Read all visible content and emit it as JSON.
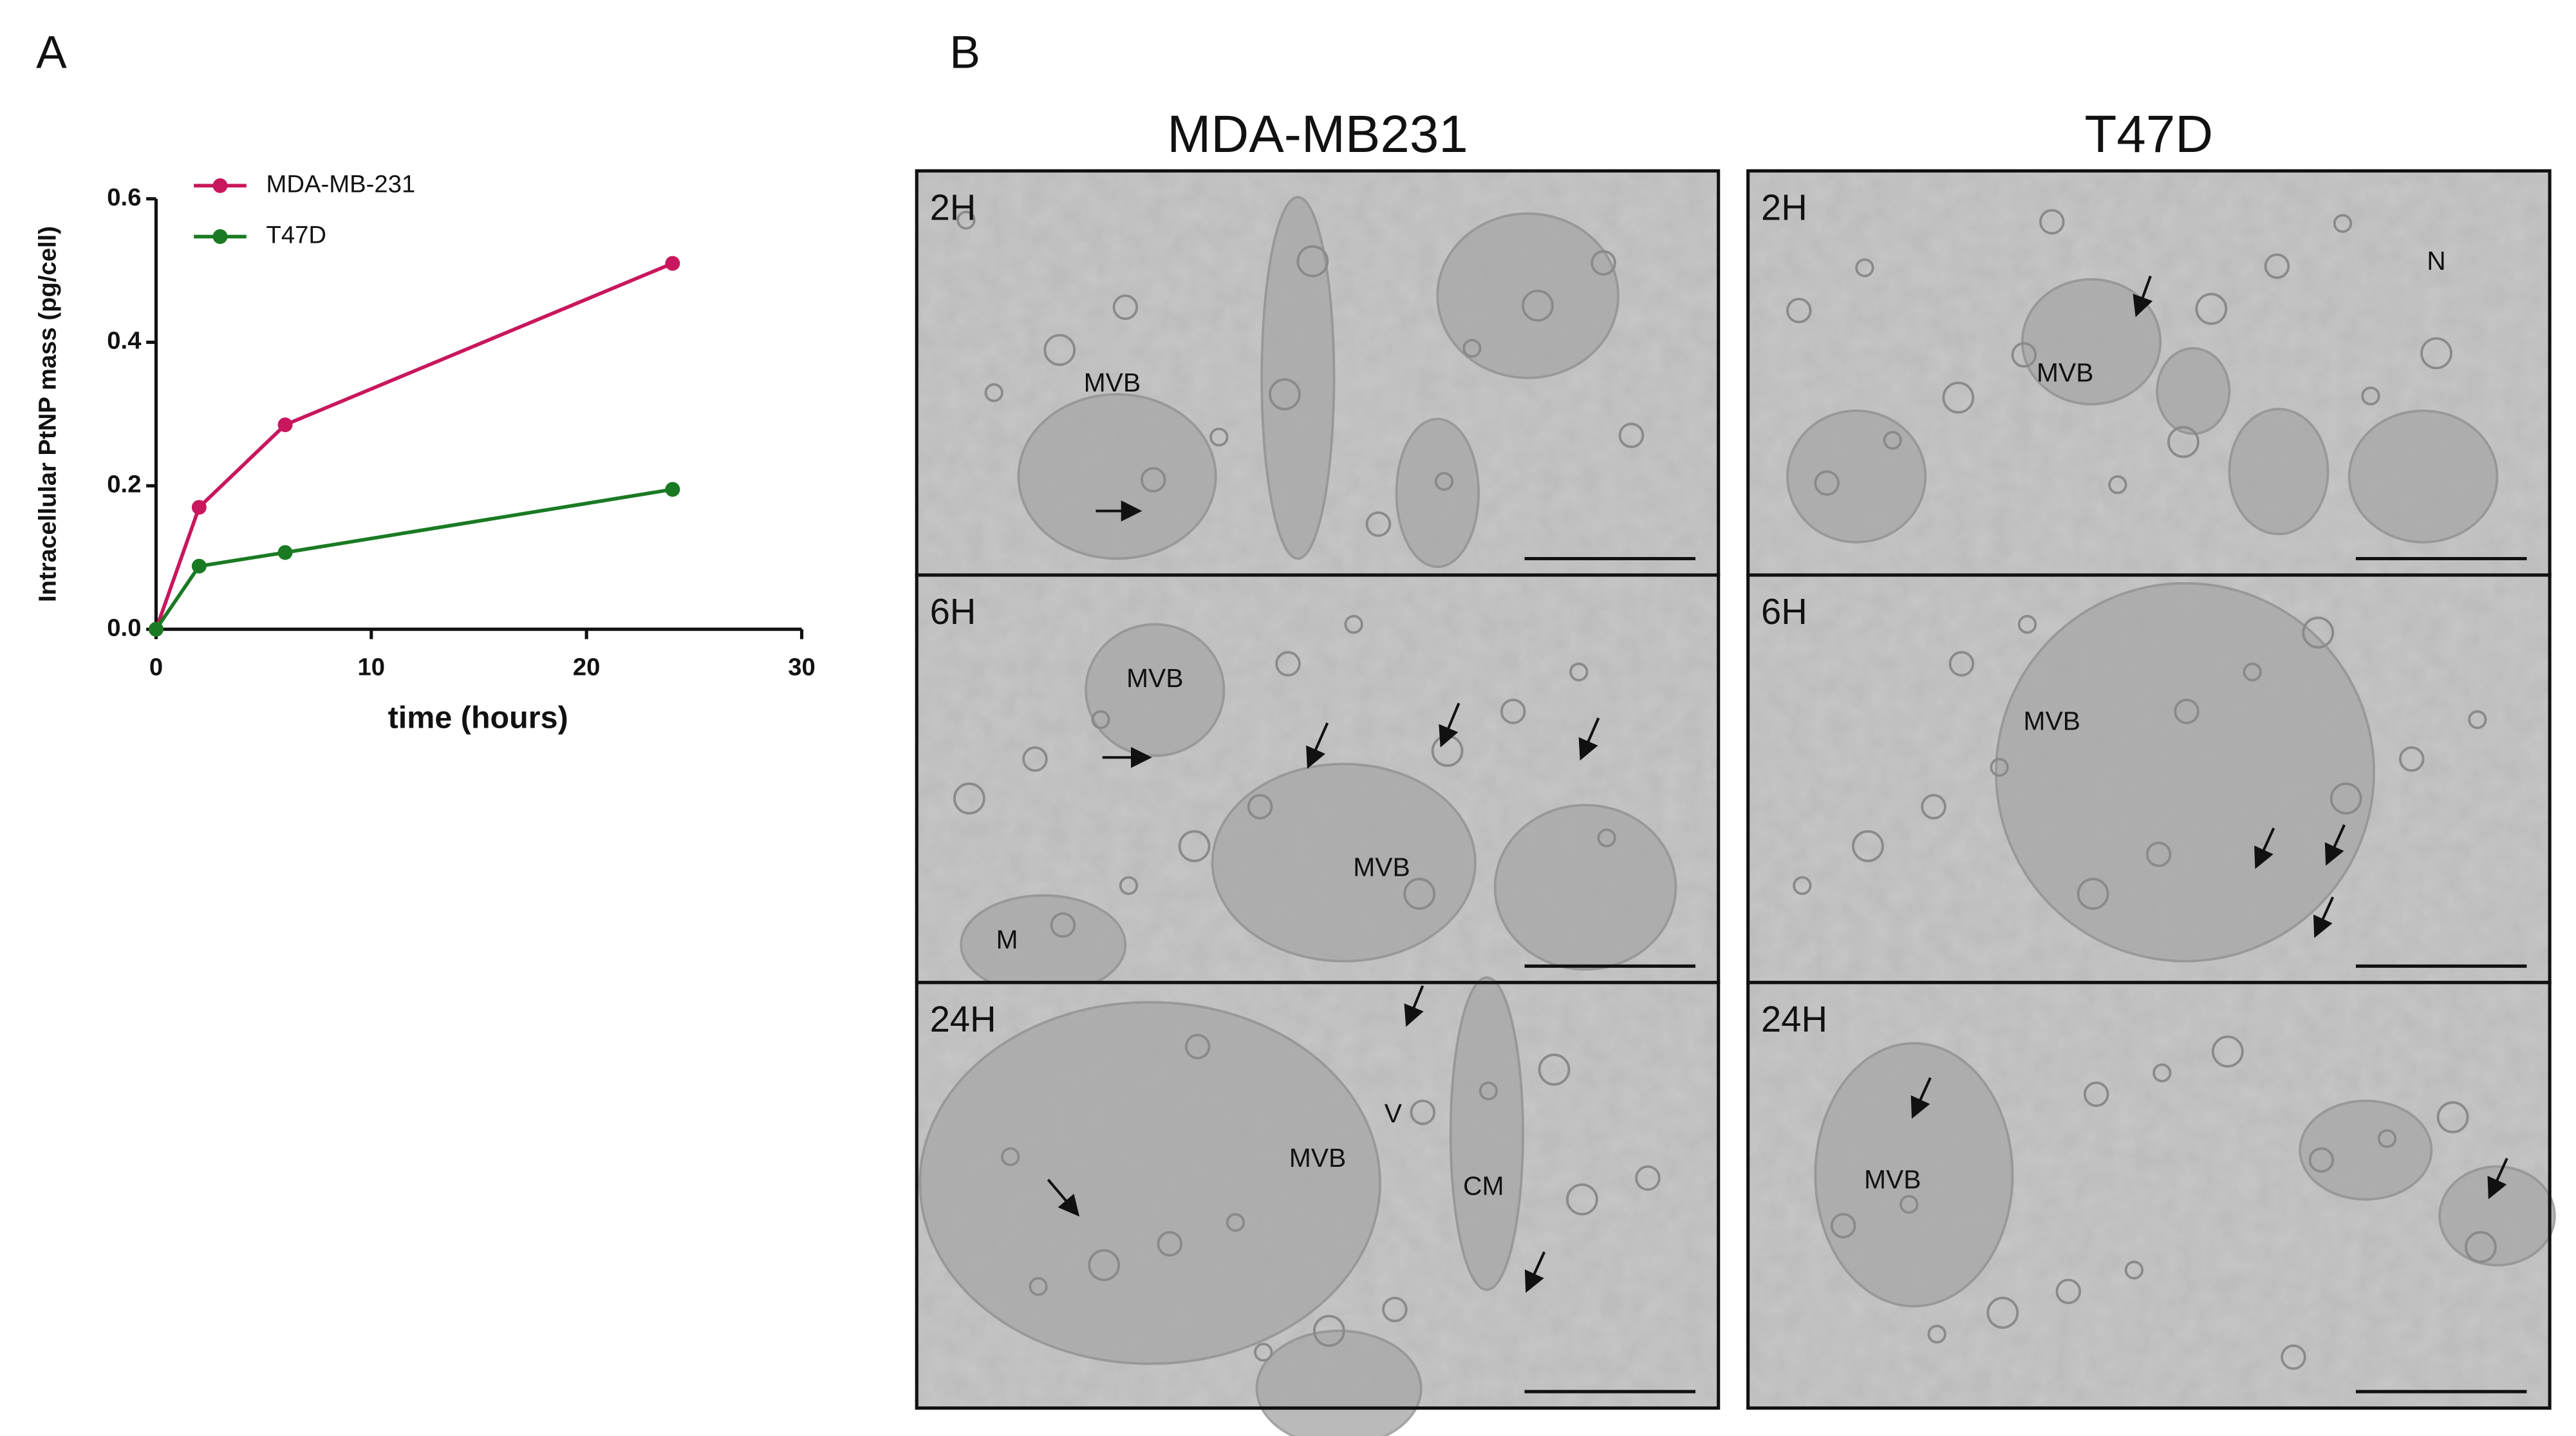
{
  "panel_labels": [
    "A",
    "B"
  ],
  "chart_data": {
    "type": "line",
    "x_label": "time (hours)",
    "y_label": "Intracellular PtNP mass  (pg/cell)",
    "x": [
      0,
      2,
      6,
      24
    ],
    "series": [
      {
        "name": "MDA-MB-231",
        "color": "#c8175d",
        "values": [
          0,
          0.17,
          0.285,
          0.51
        ]
      },
      {
        "name": "T47D",
        "color": "#1a7a23",
        "values": [
          0,
          0.088,
          0.107,
          0.195
        ]
      }
    ],
    "xlim": [
      0,
      30
    ],
    "xticks": [
      0,
      10,
      20,
      30
    ],
    "ylim": [
      0,
      0.6
    ],
    "yticks": [
      {
        "value": 0,
        "label": "0.0"
      },
      0.2,
      0.4,
      0.6
    ],
    "legend": "top-left"
  },
  "micrographs": {
    "columns": [
      "MDA-MB231",
      "T47D"
    ],
    "panels": [
      {
        "label": "2H",
        "annotations": [
          "MVB"
        ]
      },
      {
        "label": "2H",
        "annotations": [
          "N",
          "MVB"
        ]
      },
      {
        "label": "6H",
        "annotations": [
          "MVB",
          "MVB",
          "M"
        ]
      },
      {
        "label": "6H",
        "annotations": [
          "MVB"
        ]
      },
      {
        "label": "24H",
        "annotations": [
          "MVB",
          "V",
          "CM"
        ]
      },
      {
        "label": "24H",
        "annotations": [
          "MVB"
        ]
      }
    ]
  }
}
